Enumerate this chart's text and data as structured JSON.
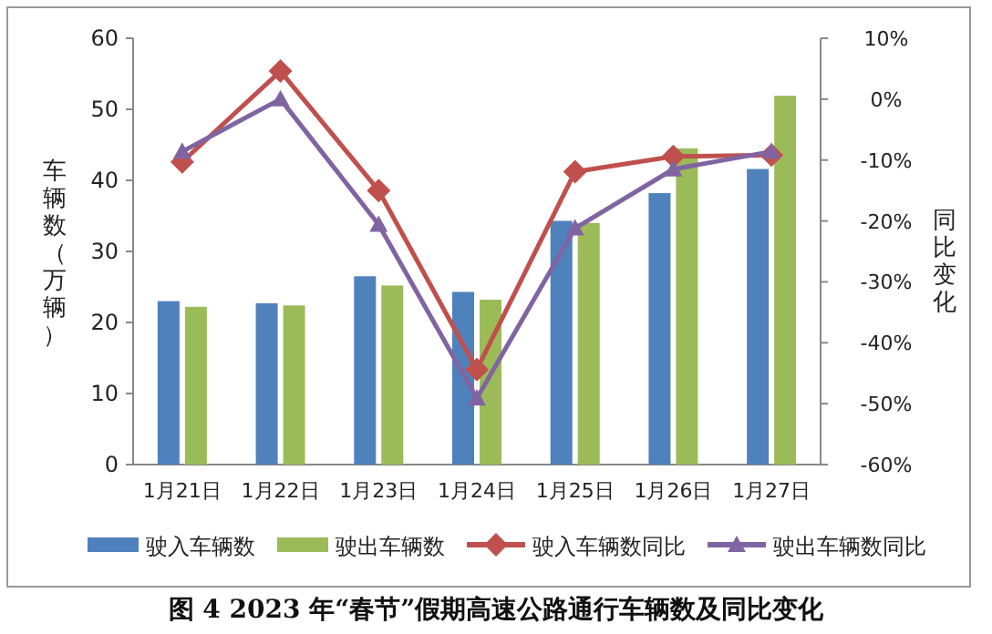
{
  "chart_data": {
    "type": "bar",
    "title": "图 4 2023 年“春节”假期高速公路通行车辆数及同比变化",
    "ylabel": "车辆数（万辆）",
    "y2label": "同比变化",
    "categories": [
      "1月21日",
      "1月22日",
      "1月23日",
      "1月24日",
      "1月25日",
      "1月26日",
      "1月27日"
    ],
    "series": [
      {
        "name": "驶入车辆数",
        "color": "#4f81bd",
        "values": [
          23.0,
          22.7,
          26.5,
          24.3,
          34.3,
          38.2,
          41.6
        ]
      },
      {
        "name": "驶出车辆数",
        "color": "#9bbb59",
        "values": [
          22.2,
          22.4,
          25.2,
          23.2,
          34.0,
          44.5,
          51.9
        ]
      },
      {
        "name": "驶入车辆数同比",
        "type": "line",
        "axis": "y2",
        "marker": "diamond",
        "color": "#c0504d",
        "values": [
          -10.3,
          4.6,
          -15.0,
          -44.4,
          -11.9,
          -9.4,
          -9.2
        ]
      },
      {
        "name": "驶出车辆数同比",
        "type": "line",
        "axis": "y2",
        "marker": "triangle",
        "color": "#8064a2",
        "values": [
          -8.6,
          0,
          -20.6,
          -49.1,
          -21.2,
          -11.5,
          -8.6
        ]
      }
    ],
    "ylim": [
      0,
      60
    ],
    "yticks": [
      0,
      10,
      20,
      30,
      40,
      50,
      60
    ],
    "y2lim": [
      -60,
      10
    ],
    "y2ticks": [
      {
        "value": -60,
        "label": "-60%"
      },
      {
        "value": -50,
        "label": "-50%"
      },
      {
        "value": -40,
        "label": "-40%"
      },
      {
        "value": -30,
        "label": "-30%"
      },
      {
        "value": -20,
        "label": "-20%"
      },
      {
        "value": -10,
        "label": "-10%"
      },
      {
        "value": 0,
        "label": "0%"
      },
      {
        "value": 10,
        "label": "10%"
      }
    ],
    "legend": "bottom",
    "grid": false
  }
}
